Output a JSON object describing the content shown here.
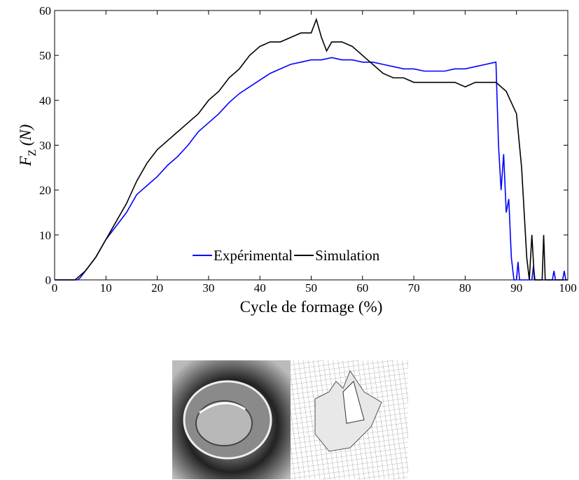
{
  "chart_data": {
    "type": "line",
    "xlabel": "Cycle de formage (%)",
    "ylabel": {
      "main": "F",
      "sub": "Z",
      "unit": "(N)"
    },
    "xlim": [
      0,
      100
    ],
    "xticks": [
      0,
      10,
      20,
      30,
      40,
      50,
      60,
      70,
      80,
      90,
      100
    ],
    "ylim": [
      0,
      60
    ],
    "yticks": [
      0,
      10,
      20,
      30,
      40,
      50,
      60
    ],
    "legend": "lower center",
    "series": [
      {
        "name": "Expérimental",
        "color": "#0000ff",
        "x": [
          0,
          4.5,
          5,
          8,
          10,
          12,
          14,
          16,
          18,
          20,
          22,
          24,
          26,
          28,
          30,
          32,
          34,
          36,
          38,
          40,
          42,
          44,
          46,
          48,
          50,
          52,
          54,
          56,
          58,
          60,
          62,
          64,
          66,
          68,
          70,
          72,
          74,
          76,
          78,
          80,
          82,
          84,
          86,
          86.5,
          87,
          87.5,
          88,
          88.5,
          89,
          89.5,
          90,
          90.3,
          90.6,
          93,
          93.3,
          93.6,
          97,
          97.3,
          97.6,
          99,
          99.3,
          99.6,
          100
        ],
        "values": [
          0,
          0,
          0.5,
          5,
          9,
          12,
          15,
          19,
          21,
          23,
          25.5,
          27.5,
          30,
          33,
          35,
          37,
          39.5,
          41.5,
          43,
          44.5,
          46,
          47,
          48,
          48.5,
          49,
          49,
          49.5,
          49,
          49,
          48.5,
          48.5,
          48,
          47.5,
          47,
          47,
          46.5,
          46.5,
          46.5,
          47,
          47,
          47.5,
          48,
          48.5,
          30,
          20,
          28,
          15,
          18,
          5,
          0,
          0,
          4,
          0,
          0,
          3,
          0,
          0,
          2,
          0,
          0,
          2,
          0,
          0
        ]
      },
      {
        "name": "Simulation",
        "color": "#000000",
        "x": [
          0,
          4,
          6,
          8,
          10,
          12,
          14,
          16,
          18,
          20,
          22,
          24,
          26,
          28,
          30,
          32,
          34,
          36,
          38,
          40,
          42,
          44,
          46,
          48,
          50,
          51,
          52,
          53,
          54,
          56,
          58,
          60,
          62,
          64,
          66,
          68,
          70,
          72,
          74,
          76,
          78,
          80,
          82,
          84,
          86,
          88,
          90,
          91,
          92,
          92.5,
          93,
          93.5,
          95,
          95.3,
          95.6,
          100
        ],
        "values": [
          0,
          0,
          2,
          5,
          9,
          13,
          17,
          22,
          26,
          29,
          31,
          33,
          35,
          37,
          40,
          42,
          45,
          47,
          50,
          52,
          53,
          53,
          54,
          55,
          55,
          58,
          54,
          51,
          53,
          53,
          52,
          50,
          48,
          46,
          45,
          45,
          44,
          44,
          44,
          44,
          44,
          43,
          44,
          44,
          44,
          42,
          37,
          25,
          5,
          0,
          10,
          0,
          0,
          10,
          0,
          0
        ]
      }
    ]
  }
}
